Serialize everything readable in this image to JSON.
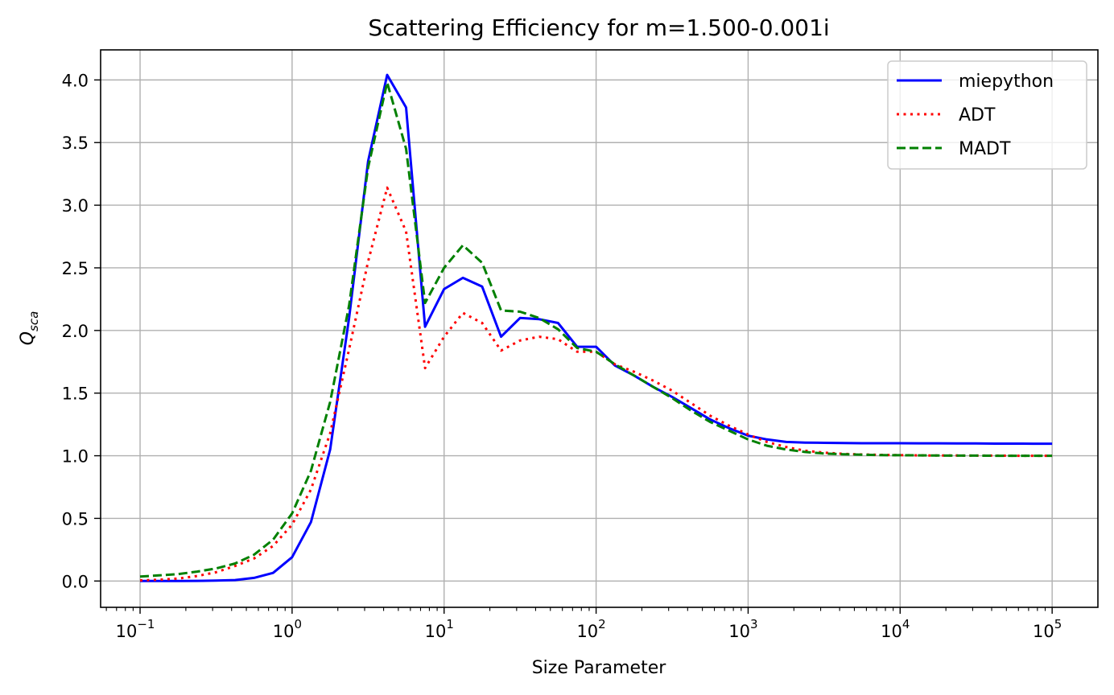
{
  "chart_data": {
    "type": "line",
    "title": "Scattering Efficiency for m=1.500-0.001i",
    "xlabel": "Size Parameter",
    "ylabel": {
      "base": "Q",
      "subscript": "sca"
    },
    "xscale": "log",
    "xlim": [
      0.055,
      200000
    ],
    "ylim": [
      -0.21,
      4.24
    ],
    "grid": true,
    "legend_position": "top-right",
    "x_ticks": [
      {
        "value": 0.1,
        "base": "10",
        "exp": "−1"
      },
      {
        "value": 1,
        "base": "10",
        "exp": "0"
      },
      {
        "value": 10,
        "base": "10",
        "exp": "1"
      },
      {
        "value": 100,
        "base": "10",
        "exp": "2"
      },
      {
        "value": 1000,
        "base": "10",
        "exp": "3"
      },
      {
        "value": 10000,
        "base": "10",
        "exp": "4"
      },
      {
        "value": 100000,
        "base": "10",
        "exp": "5"
      }
    ],
    "y_ticks": [
      {
        "value": 0.0,
        "label": "0.0"
      },
      {
        "value": 0.5,
        "label": "0.5"
      },
      {
        "value": 1.0,
        "label": "1.0"
      },
      {
        "value": 1.5,
        "label": "1.5"
      },
      {
        "value": 2.0,
        "label": "2.0"
      },
      {
        "value": 2.5,
        "label": "2.5"
      },
      {
        "value": 3.0,
        "label": "3.0"
      },
      {
        "value": 3.5,
        "label": "3.5"
      },
      {
        "value": 4.0,
        "label": "4.0"
      }
    ],
    "x": [
      0.1,
      0.133,
      0.178,
      0.237,
      0.316,
      0.422,
      0.562,
      0.75,
      1.0,
      1.33,
      1.78,
      2.37,
      3.16,
      4.22,
      5.62,
      7.5,
      10.0,
      13.3,
      17.8,
      23.7,
      31.6,
      42.2,
      56.2,
      75.0,
      100.0,
      133.0,
      178.0,
      237.0,
      316.0,
      422.0,
      562.0,
      750.0,
      1000.0,
      1330.0,
      1780.0,
      2370.0,
      3160.0,
      4220.0,
      5620.0,
      7500.0,
      10000.0,
      13300.0,
      17800.0,
      23700.0,
      31600.0,
      42200.0,
      56200.0,
      75000.0,
      100000.0
    ],
    "series": [
      {
        "name": "miepython",
        "color": "#0000ff",
        "dash": "solid",
        "values": [
          0.0,
          0.0,
          0.0,
          0.001,
          0.003,
          0.008,
          0.025,
          0.065,
          0.19,
          0.47,
          1.05,
          2.1,
          3.35,
          4.04,
          3.78,
          2.03,
          2.33,
          2.42,
          2.35,
          1.95,
          2.1,
          2.09,
          2.06,
          1.87,
          1.87,
          1.72,
          1.64,
          1.55,
          1.47,
          1.38,
          1.29,
          1.22,
          1.16,
          1.13,
          1.11,
          1.105,
          1.103,
          1.101,
          1.1,
          1.1,
          1.1,
          1.099,
          1.099,
          1.098,
          1.098,
          1.097,
          1.097,
          1.096,
          1.096
        ]
      },
      {
        "name": "ADT",
        "color": "#ff0000",
        "dash": "dotted",
        "values": [
          0.005,
          0.01,
          0.02,
          0.04,
          0.07,
          0.12,
          0.18,
          0.28,
          0.45,
          0.73,
          1.18,
          1.85,
          2.55,
          3.14,
          2.79,
          1.7,
          1.95,
          2.14,
          2.06,
          1.84,
          1.92,
          1.95,
          1.93,
          1.83,
          1.83,
          1.73,
          1.67,
          1.6,
          1.52,
          1.42,
          1.32,
          1.24,
          1.17,
          1.11,
          1.07,
          1.04,
          1.025,
          1.015,
          1.01,
          1.007,
          1.005,
          1.003,
          1.002,
          1.002,
          1.001,
          1.001,
          1.0,
          1.0,
          1.0
        ]
      },
      {
        "name": "MADT",
        "color": "#008000",
        "dash": "dashed",
        "values": [
          0.035,
          0.045,
          0.055,
          0.075,
          0.1,
          0.14,
          0.21,
          0.33,
          0.54,
          0.88,
          1.43,
          2.2,
          3.3,
          3.98,
          3.45,
          2.22,
          2.5,
          2.68,
          2.54,
          2.16,
          2.15,
          2.1,
          2.01,
          1.86,
          1.83,
          1.73,
          1.64,
          1.55,
          1.46,
          1.36,
          1.27,
          1.2,
          1.13,
          1.08,
          1.05,
          1.03,
          1.018,
          1.012,
          1.008,
          1.005,
          1.004,
          1.003,
          1.002,
          1.001,
          1.001,
          1.0,
          1.0,
          1.0,
          1.0
        ]
      }
    ]
  }
}
